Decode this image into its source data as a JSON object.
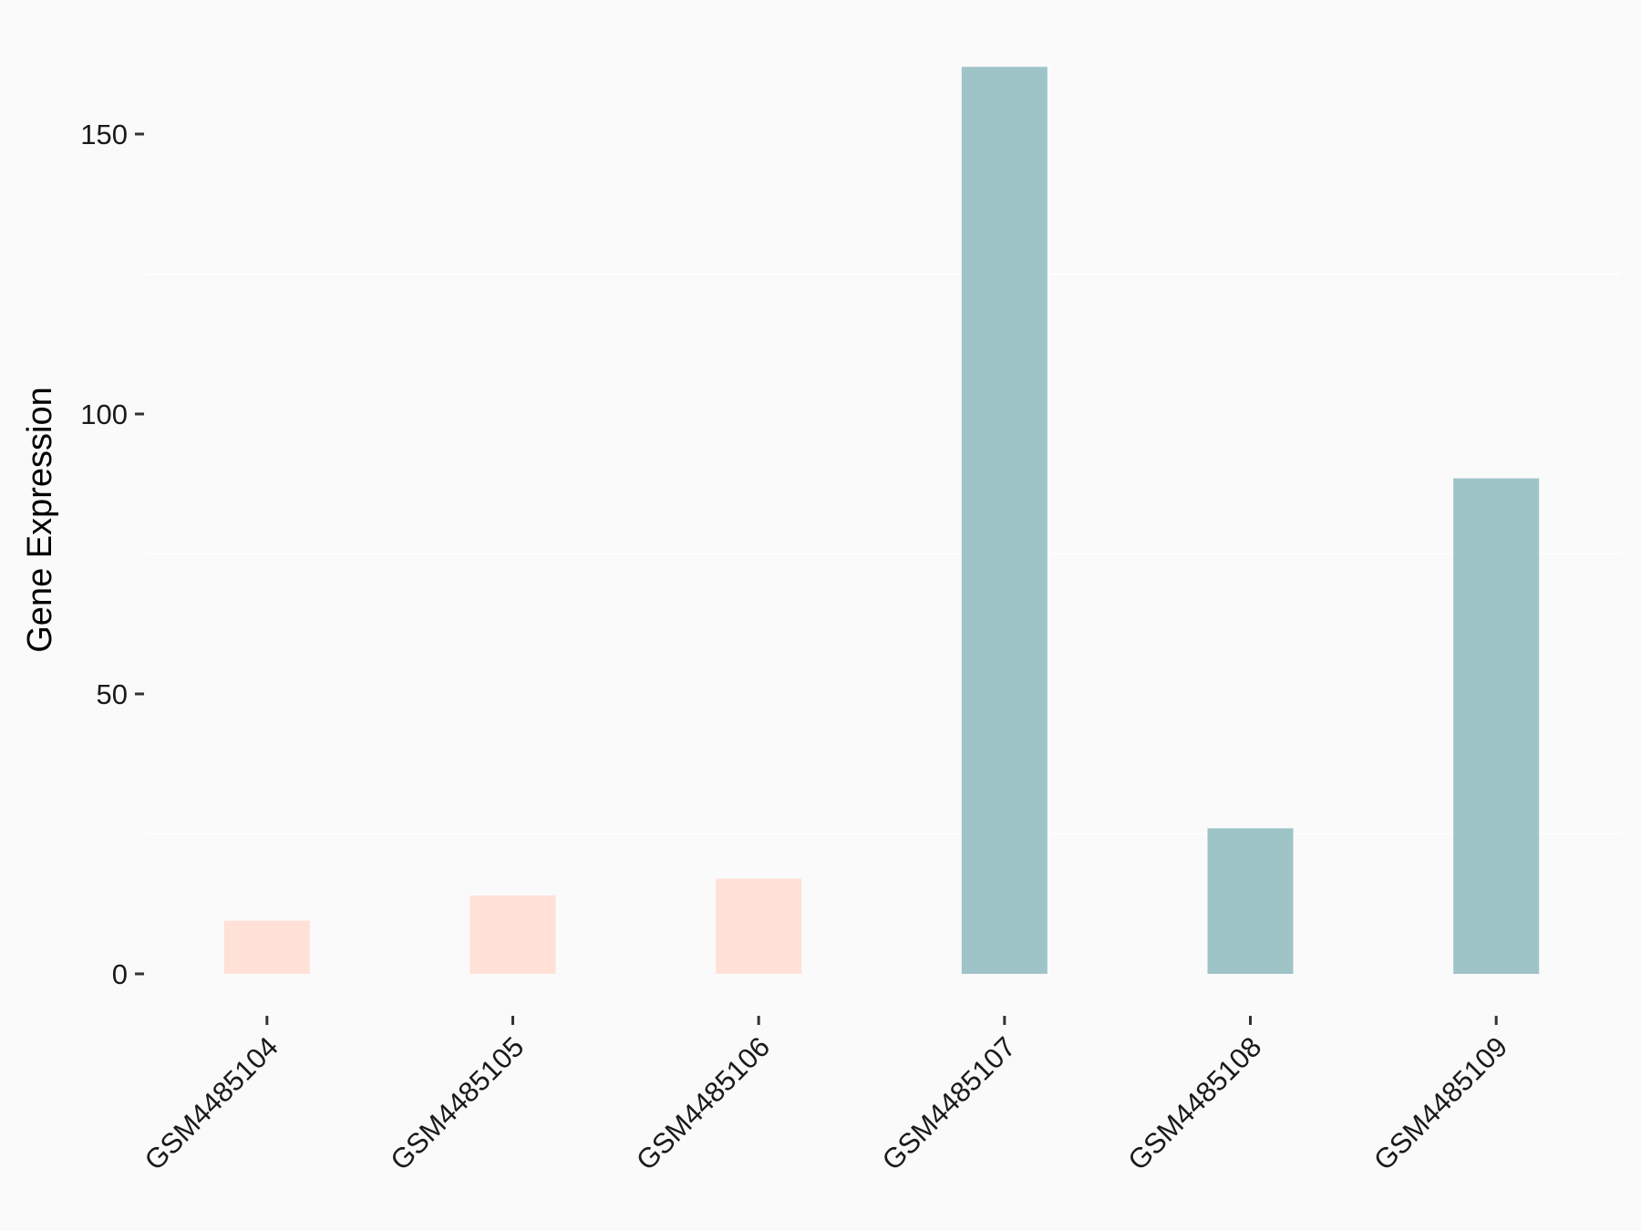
{
  "chart_data": {
    "type": "bar",
    "categories": [
      "GSM4485104",
      "GSM4485105",
      "GSM4485106",
      "GSM4485107",
      "GSM4485108",
      "GSM4485109"
    ],
    "values": [
      9.5,
      14,
      17,
      162,
      26,
      88.5
    ],
    "groups": [
      "group-1",
      "group-1",
      "group-1",
      "group-2",
      "group-2",
      "group-2"
    ],
    "colors": {
      "group-1": "#FFE1D7",
      "group-2": "#9EC4C8"
    },
    "xlabel": "",
    "ylabel": "Gene Expression",
    "yticks": [
      0,
      50,
      100,
      150
    ],
    "ylim": [
      -8,
      172
    ],
    "grid": "horizontal minor lines, faint",
    "legend": "none"
  }
}
